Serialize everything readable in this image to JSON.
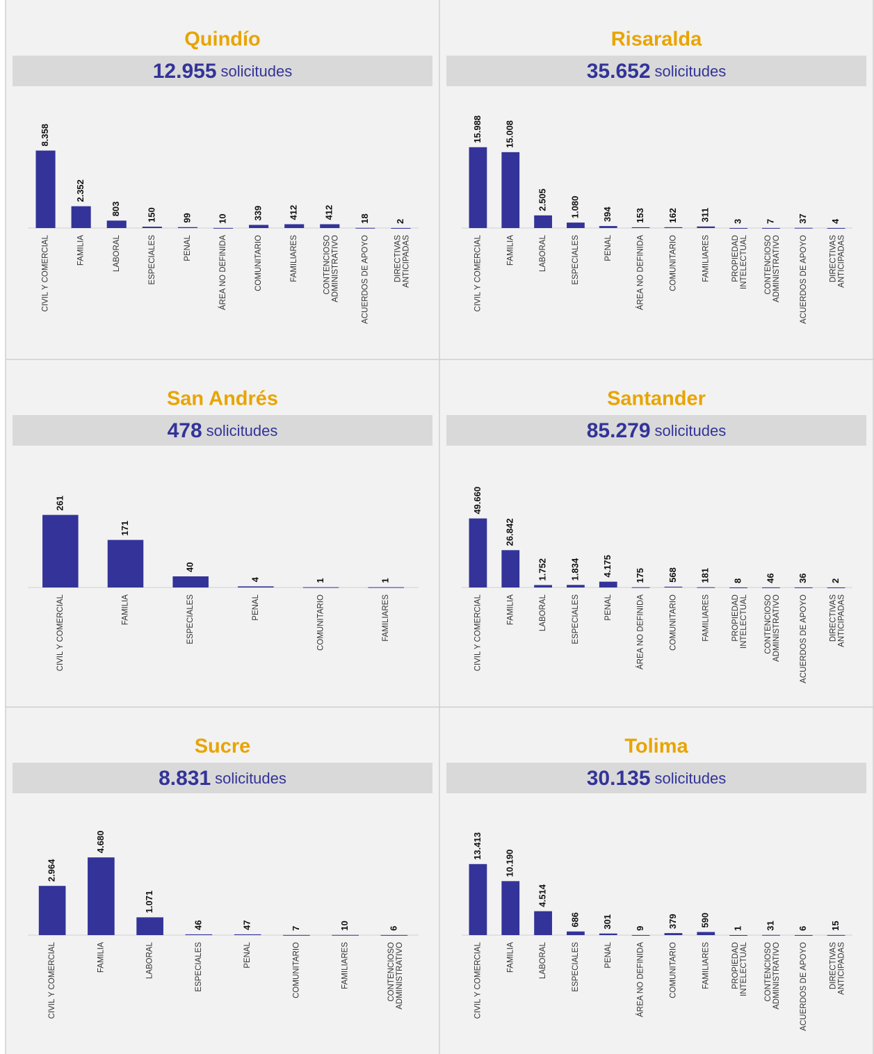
{
  "chart_data": [
    {
      "type": "bar",
      "title": "Quindío",
      "total": {
        "value": 12955,
        "label": "12.955"
      },
      "unit": "solicitudes",
      "color": "#333399",
      "ylim": [
        0,
        12000
      ],
      "categories": [
        "CIVIL Y COMERCIAL",
        "FAMILIA",
        "LABORAL",
        "ESPECIALES",
        "PENAL",
        "ÁREA NO DEFINIDA",
        "COMUNITARIO",
        "FAMILIARES",
        "CONTENCIOSO ADMINISTRATIVO",
        "ACUERDOS DE APOYO",
        "DIRECTIVAS ANTICIPADAS"
      ],
      "values": [
        8358,
        2352,
        803,
        150,
        99,
        10,
        339,
        412,
        412,
        18,
        2
      ],
      "value_labels": [
        "8.358",
        "2.352",
        "803",
        "150",
        "99",
        "10",
        "339",
        "412",
        "412",
        "18",
        "2"
      ]
    },
    {
      "type": "bar",
      "title": "Risaralda",
      "total": {
        "value": 35652,
        "label": "35.652"
      },
      "unit": "solicitudes",
      "color": "#333399",
      "ylim": [
        0,
        22000
      ],
      "categories": [
        "CIVIL Y COMERCIAL",
        "FAMILIA",
        "LABORAL",
        "ESPECIALES",
        "PENAL",
        "ÁREA NO DEFINIDA",
        "COMUNITARIO",
        "FAMILIARES",
        "PROPIEDAD INTELECTUAL",
        "CONTENCIOSO ADMINISTRATIVO",
        "ACUERDOS DE APOYO",
        "DIRECTIVAS ANTICIPADAS"
      ],
      "values": [
        15988,
        15008,
        2505,
        1080,
        394,
        153,
        162,
        311,
        3,
        7,
        37,
        4
      ],
      "value_labels": [
        "15.988",
        "15.008",
        "2.505",
        "1.080",
        "394",
        "153",
        "162",
        "311",
        "3",
        "7",
        "37",
        "4"
      ]
    },
    {
      "type": "bar",
      "title": "San Andrés",
      "total": {
        "value": 478,
        "label": "478"
      },
      "unit": "solicitudes",
      "color": "#333399",
      "ylim": [
        0,
        400
      ],
      "categories": [
        "CIVIL Y COMERCIAL",
        "FAMILIA",
        "ESPECIALES",
        "PENAL",
        "COMUNITARIO",
        "FAMILIARES"
      ],
      "values": [
        261,
        171,
        40,
        4,
        1,
        1
      ],
      "value_labels": [
        "261",
        "171",
        "40",
        "4",
        "1",
        "1"
      ]
    },
    {
      "type": "bar",
      "title": "Santander",
      "total": {
        "value": 85279,
        "label": "85.279"
      },
      "unit": "solicitudes",
      "color": "#333399",
      "ylim": [
        0,
        80000
      ],
      "categories": [
        "CIVIL Y COMERCIAL",
        "FAMILIA",
        "LABORAL",
        "ESPECIALES",
        "PENAL",
        "ÁREA NO DEFINIDA",
        "COMUNITARIO",
        "FAMILIARES",
        "PROPIEDAD INTELECTUAL",
        "CONTENCIOSO ADMINISTRATIVO",
        "ACUERDOS DE APOYO",
        "DIRECTIVAS ANTICIPADAS"
      ],
      "values": [
        49660,
        26842,
        1752,
        1834,
        4175,
        175,
        568,
        181,
        8,
        46,
        36,
        2
      ],
      "value_labels": [
        "49.660",
        "26.842",
        "1.752",
        "1.834",
        "4.175",
        "175",
        "568",
        "181",
        "8",
        "46",
        "36",
        "2"
      ]
    },
    {
      "type": "bar",
      "title": "Sucre",
      "total": {
        "value": 8831,
        "label": "8.831"
      },
      "unit": "solicitudes",
      "color": "#333399",
      "ylim": [
        0,
        6700
      ],
      "categories": [
        "CIVIL Y COMERCIAL",
        "FAMILIA",
        "LABORAL",
        "ESPECIALES",
        "PENAL",
        "COMUNITARIO",
        "FAMILIARES",
        "CONTENCIOSO ADMINISTRATIVO"
      ],
      "values": [
        2964,
        4680,
        1071,
        46,
        47,
        7,
        10,
        6
      ],
      "value_labels": [
        "2.964",
        "4.680",
        "1.071",
        "46",
        "47",
        "7",
        "10",
        "6"
      ]
    },
    {
      "type": "bar",
      "title": "Tolima",
      "total": {
        "value": 30135,
        "label": "30.135"
      },
      "unit": "solicitudes",
      "color": "#333399",
      "ylim": [
        0,
        21000
      ],
      "categories": [
        "CIVIL Y COMERCIAL",
        "FAMILIA",
        "LABORAL",
        "ESPECIALES",
        "PENAL",
        "ÁREA NO DEFINIDA",
        "COMUNITARIO",
        "FAMILIARES",
        "PROPIEDAD INTELECTUAL",
        "CONTENCIOSO ADMINISTRATIVO",
        "ACUERDOS DE APOYO",
        "DIRECTIVAS ANTICIPADAS"
      ],
      "values": [
        13413,
        10190,
        4514,
        686,
        301,
        9,
        379,
        590,
        1,
        31,
        6,
        15
      ],
      "value_labels": [
        "13.413",
        "10.190",
        "4.514",
        "686",
        "301",
        "9",
        "379",
        "590",
        "1",
        "31",
        "6",
        "15"
      ]
    }
  ]
}
